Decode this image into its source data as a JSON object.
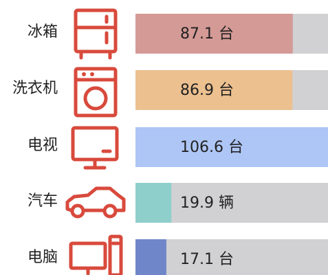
{
  "chart_data": {
    "type": "bar",
    "orientation": "horizontal",
    "categories": [
      "冰箱",
      "洗衣机",
      "电视",
      "汽车",
      "电脑"
    ],
    "values": [
      87.1,
      86.9,
      106.6,
      19.9,
      17.1
    ],
    "value_labels": [
      "87.1 台",
      "86.9 台",
      "106.6 台",
      "19.9 辆",
      "17.1 台"
    ],
    "colors": [
      "#d49a96",
      "#ecc08f",
      "#aec6f5",
      "#8ecfcb",
      "#6f87c8"
    ],
    "track_color": "#d1d1d3",
    "xlim": [
      0,
      106.6
    ]
  }
}
